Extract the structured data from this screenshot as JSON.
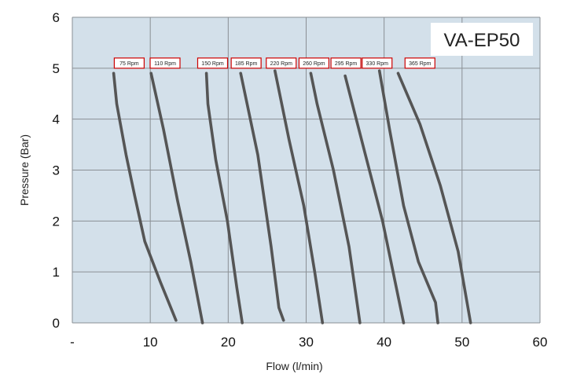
{
  "chart_data": {
    "type": "line",
    "title": "",
    "model_label": "VA-EP50",
    "xlabel": "Flow (l/min)",
    "ylabel": "Pressure (Bar)",
    "xlim": [
      0,
      60
    ],
    "ylim": [
      0,
      6
    ],
    "x_ticks": [
      {
        "value": 0,
        "label": "-"
      },
      {
        "value": 10,
        "label": "10"
      },
      {
        "value": 20,
        "label": "20"
      },
      {
        "value": 30,
        "label": "30"
      },
      {
        "value": 40,
        "label": "40"
      },
      {
        "value": 50,
        "label": "50"
      },
      {
        "value": 60,
        "label": "60"
      }
    ],
    "y_ticks": [
      {
        "value": 0,
        "label": "0"
      },
      {
        "value": 1,
        "label": "1"
      },
      {
        "value": 2,
        "label": "2"
      },
      {
        "value": 3,
        "label": "3"
      },
      {
        "value": 4,
        "label": "4"
      },
      {
        "value": 5,
        "label": "5"
      },
      {
        "value": 6,
        "label": "6"
      }
    ],
    "grid": true,
    "colors": {
      "plot_background": "#d3e0ea",
      "grid": "#8a8f94",
      "curve": "#555555",
      "label_border": "#cc0000",
      "label_background": "#ffffff"
    },
    "series": [
      {
        "name": "75 Rpm",
        "label_x": 7.3,
        "points": [
          [
            5.3,
            4.9
          ],
          [
            5.7,
            4.3
          ],
          [
            6.9,
            3.3
          ],
          [
            8.0,
            2.5
          ],
          [
            9.3,
            1.6
          ],
          [
            11.3,
            0.8
          ],
          [
            13.3,
            0.05
          ]
        ]
      },
      {
        "name": "110 Rpm",
        "label_x": 11.9,
        "points": [
          [
            10.1,
            4.9
          ],
          [
            11.7,
            3.8
          ],
          [
            13.5,
            2.4
          ],
          [
            15.2,
            1.2
          ],
          [
            16.7,
            0.0
          ]
        ]
      },
      {
        "name": "150 Rpm",
        "label_x": 18.0,
        "points": [
          [
            17.2,
            4.9
          ],
          [
            17.4,
            4.3
          ],
          [
            18.4,
            3.2
          ],
          [
            19.9,
            2.0
          ],
          [
            21.1,
            0.7
          ],
          [
            21.8,
            0.0
          ]
        ]
      },
      {
        "name": "185 Rpm",
        "label_x": 22.3,
        "points": [
          [
            21.6,
            4.9
          ],
          [
            23.8,
            3.3
          ],
          [
            25.5,
            1.5
          ],
          [
            26.5,
            0.3
          ],
          [
            27.1,
            0.05
          ]
        ]
      },
      {
        "name": "220 Rpm",
        "label_x": 26.8,
        "points": [
          [
            26.0,
            4.95
          ],
          [
            27.8,
            3.6
          ],
          [
            29.7,
            2.3
          ],
          [
            31.1,
            1.0
          ],
          [
            32.1,
            0.0
          ]
        ]
      },
      {
        "name": "260 Rpm",
        "label_x": 31.0,
        "points": [
          [
            30.6,
            4.9
          ],
          [
            31.4,
            4.3
          ],
          [
            33.5,
            3.0
          ],
          [
            35.5,
            1.5
          ],
          [
            36.9,
            0.0
          ]
        ]
      },
      {
        "name": "295 Rpm",
        "label_x": 35.1,
        "points": [
          [
            35.0,
            4.85
          ],
          [
            37.6,
            3.3
          ],
          [
            39.8,
            2.0
          ],
          [
            42.5,
            0.0
          ]
        ]
      },
      {
        "name": "330 Rpm",
        "label_x": 39.1,
        "points": [
          [
            39.4,
            4.95
          ],
          [
            40.7,
            3.8
          ],
          [
            42.5,
            2.3
          ],
          [
            44.4,
            1.2
          ],
          [
            46.6,
            0.4
          ],
          [
            46.9,
            0.0
          ]
        ]
      },
      {
        "name": "365 Rpm",
        "label_x": 44.6,
        "points": [
          [
            41.8,
            4.9
          ],
          [
            44.6,
            3.9
          ],
          [
            47.2,
            2.7
          ],
          [
            49.5,
            1.4
          ],
          [
            51.1,
            0.0
          ]
        ]
      }
    ]
  }
}
